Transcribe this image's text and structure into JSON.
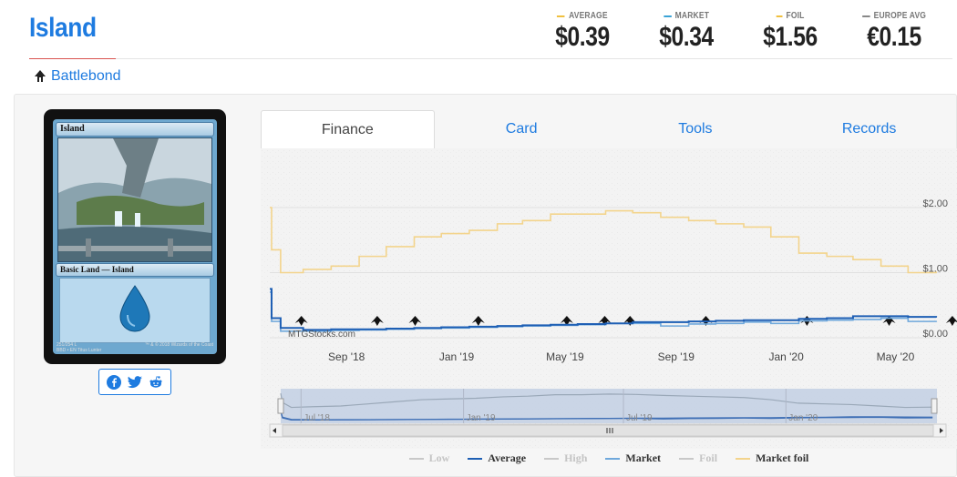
{
  "card": {
    "name": "Island",
    "set_name": "Battlebond",
    "type_line": "Basic Land — Island",
    "collector": "251/254 L",
    "set_code": "BBD • EN",
    "artist": "Titus Lunter",
    "copyright": "™ & © 2018 Wizards of the Coast"
  },
  "prices": [
    {
      "label": "AVERAGE",
      "value": "$0.39",
      "color": "#f0c040"
    },
    {
      "label": "MARKET",
      "value": "$0.34",
      "color": "#3aa3d6"
    },
    {
      "label": "FOIL",
      "value": "$1.56",
      "color": "#f0c040"
    },
    {
      "label": "EUROPE AVG",
      "value": "€0.15",
      "color": "#888888"
    }
  ],
  "tabs": [
    "Finance",
    "Card",
    "Tools",
    "Records"
  ],
  "active_tab": "Finance",
  "chart_watermark": "MTGStocks.com",
  "chart_data": {
    "type": "line",
    "x": [
      "2018-06-08",
      "2018-06-10",
      "2018-06-20",
      "2018-07-15",
      "2018-08-15",
      "2018-09-15",
      "2018-10-15",
      "2018-11-15",
      "2018-12-15",
      "2019-01-15",
      "2019-02-15",
      "2019-03-15",
      "2019-04-15",
      "2019-05-15",
      "2019-06-15",
      "2019-07-15",
      "2019-08-15",
      "2019-09-15",
      "2019-10-15",
      "2019-11-15",
      "2019-12-15",
      "2020-01-15",
      "2020-02-15",
      "2020-03-15",
      "2020-04-15",
      "2020-05-15",
      "2020-06-15"
    ],
    "series": [
      {
        "name": "Average",
        "color": "#1e5fb4",
        "values": [
          0.75,
          0.3,
          0.15,
          0.12,
          0.13,
          0.13,
          0.14,
          0.15,
          0.16,
          0.17,
          0.18,
          0.19,
          0.2,
          0.21,
          0.22,
          0.24,
          0.24,
          0.25,
          0.26,
          0.27,
          0.27,
          0.29,
          0.3,
          0.33,
          0.33,
          0.32,
          0.31
        ]
      },
      {
        "name": "Market",
        "color": "#6fa8dc",
        "values": [
          0.7,
          0.25,
          0.1,
          0.1,
          0.11,
          0.12,
          0.13,
          0.14,
          0.15,
          0.16,
          0.17,
          0.18,
          0.19,
          0.2,
          0.22,
          0.22,
          0.18,
          0.21,
          0.22,
          0.24,
          0.22,
          0.26,
          0.27,
          0.28,
          0.3,
          0.25,
          0.26
        ]
      },
      {
        "name": "Market foil",
        "color": "#f3d48c",
        "values": [
          2.0,
          1.35,
          1.0,
          1.05,
          1.1,
          1.25,
          1.4,
          1.55,
          1.6,
          1.65,
          1.75,
          1.8,
          1.9,
          1.9,
          1.95,
          1.92,
          1.85,
          1.8,
          1.75,
          1.7,
          1.55,
          1.3,
          1.25,
          1.2,
          1.1,
          1.0,
          1.02
        ]
      }
    ],
    "legend": [
      {
        "name": "Low",
        "color": "#c8c8c8",
        "muted": true
      },
      {
        "name": "Average",
        "color": "#1e5fb4",
        "muted": false
      },
      {
        "name": "High",
        "color": "#c8c8c8",
        "muted": true
      },
      {
        "name": "Market",
        "color": "#6fa8dc",
        "muted": false
      },
      {
        "name": "Foil",
        "color": "#c8c8c8",
        "muted": true
      },
      {
        "name": "Market foil",
        "color": "#f3d48c",
        "muted": false
      }
    ],
    "y_ticks": [
      "$2.00",
      "$1.00",
      "$0.00"
    ],
    "ylim": [
      0,
      2.0
    ],
    "x_ticks": [
      "Sep '18",
      "Jan '19",
      "May '19",
      "Sep '19",
      "Jan '20",
      "May '20"
    ],
    "nav_ticks": [
      "Jul '18",
      "Jan '19",
      "Jul '19",
      "Jan '20"
    ],
    "grid": true,
    "legend_position": "bottom"
  }
}
